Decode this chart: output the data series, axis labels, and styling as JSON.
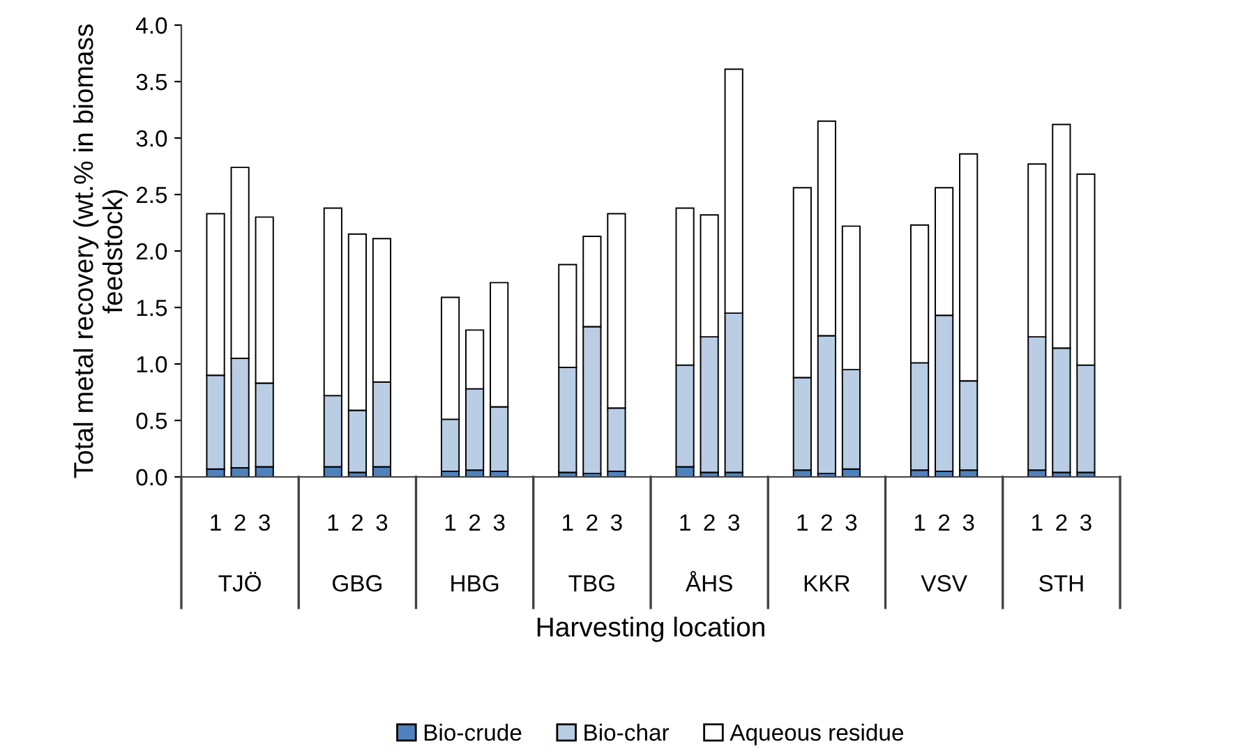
{
  "chart_data": {
    "type": "bar",
    "stacked": true,
    "xlabel": "Harvesting location",
    "ylabel": "Total metal recovery (wt.% in biomass\nfeedstock)",
    "categories": [
      "1",
      "2",
      "3",
      "1",
      "2",
      "3",
      "1",
      "2",
      "3",
      "1",
      "2",
      "3",
      "1",
      "2",
      "3",
      "1",
      "2",
      "3",
      "1",
      "2",
      "3",
      "1",
      "2",
      "3"
    ],
    "annotations": [
      "TJÖ",
      "GBG",
      "HBG",
      "TBG",
      "ÅHS",
      "KKR",
      "VSV",
      "STH"
    ],
    "series": [
      {
        "name": "Bio-crude",
        "color": "#4f81bd",
        "values": [
          0.07,
          0.08,
          0.09,
          0.09,
          0.04,
          0.09,
          0.05,
          0.06,
          0.05,
          0.04,
          0.03,
          0.05,
          0.09,
          0.04,
          0.04,
          0.06,
          0.03,
          0.07,
          0.06,
          0.05,
          0.06,
          0.06,
          0.04,
          0.04
        ]
      },
      {
        "name": "Bio-char",
        "color": "#b9cde5",
        "values": [
          0.83,
          0.97,
          0.74,
          0.63,
          0.55,
          0.75,
          0.46,
          0.72,
          0.57,
          0.93,
          1.3,
          0.56,
          0.9,
          1.2,
          1.41,
          0.82,
          1.22,
          0.88,
          0.95,
          1.38,
          0.79,
          1.18,
          1.1,
          0.95
        ]
      },
      {
        "name": "Aqueous residue",
        "color": "#ffffff",
        "values": [
          1.43,
          1.69,
          1.47,
          1.66,
          1.56,
          1.27,
          1.08,
          0.52,
          1.1,
          0.91,
          0.8,
          1.72,
          1.39,
          1.08,
          2.16,
          1.68,
          1.9,
          1.27,
          1.22,
          1.13,
          2.01,
          1.53,
          1.98,
          1.69
        ]
      }
    ],
    "ylim": [
      0,
      4.0
    ],
    "yticks": [
      {
        "value": 0,
        "label": "0.0"
      },
      {
        "value": 0.5,
        "label": "0.5"
      },
      {
        "value": 1,
        "label": "1.0"
      },
      {
        "value": 1.5,
        "label": "1.5"
      },
      {
        "value": 2,
        "label": "2.0"
      },
      {
        "value": 2.5,
        "label": "2.5"
      },
      {
        "value": 3,
        "label": "3.0"
      },
      {
        "value": 3.5,
        "label": "3.5"
      },
      {
        "value": 4,
        "label": "4.0"
      }
    ],
    "grid": false,
    "legend": "bottom"
  }
}
